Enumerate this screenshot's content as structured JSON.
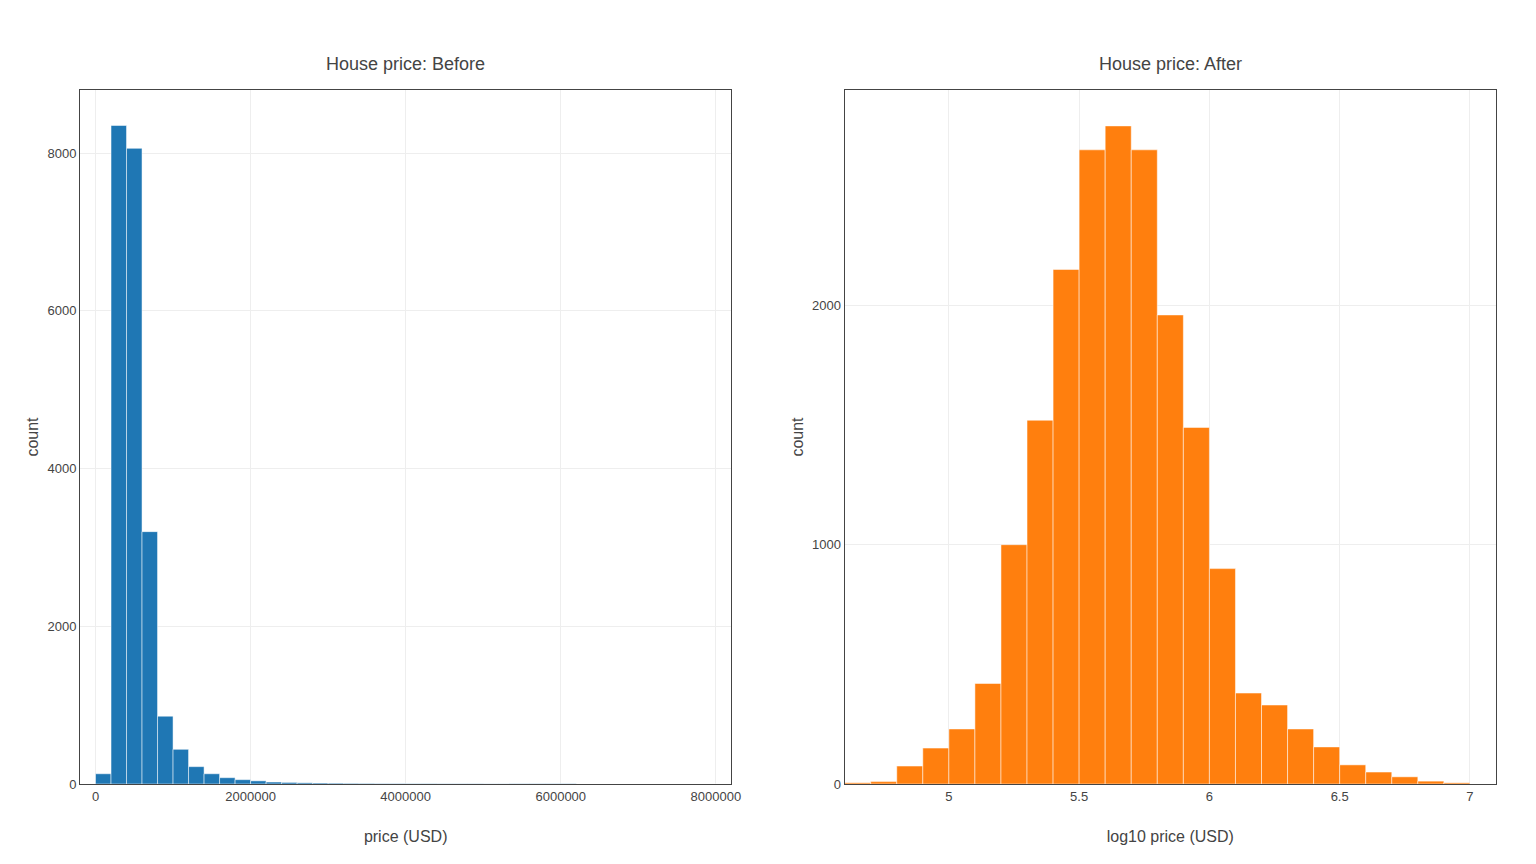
{
  "chart_data": [
    {
      "type": "histogram",
      "title": "House price: Before",
      "xlabel": "price (USD)",
      "ylabel": "count",
      "bins": [
        0,
        200000,
        400000,
        600000,
        800000,
        1000000,
        1200000,
        1400000,
        1600000,
        1800000,
        2000000,
        2200000,
        2400000,
        2600000,
        2800000,
        3000000,
        3200000,
        3400000,
        3600000,
        3800000,
        4000000,
        4200000,
        4400000,
        4600000,
        4800000,
        5000000,
        5200000,
        5400000,
        5600000,
        5800000,
        6000000,
        6200000,
        6400000,
        6600000,
        6800000,
        7000000,
        7200000,
        7400000,
        7600000,
        7800000,
        8000000
      ],
      "values": [
        130,
        8350,
        8060,
        3200,
        860,
        440,
        220,
        130,
        80,
        55,
        40,
        25,
        20,
        15,
        12,
        10,
        8,
        7,
        5,
        5,
        4,
        4,
        3,
        3,
        3,
        2,
        2,
        2,
        2,
        2,
        2,
        1,
        1,
        1,
        1,
        1,
        1,
        1,
        1,
        1
      ],
      "xlim": [
        -200000,
        8200000
      ],
      "ylim": [
        0,
        8800
      ],
      "xticks": [
        0,
        2000000,
        4000000,
        6000000,
        8000000
      ],
      "yticks": [
        0,
        2000,
        4000,
        6000,
        8000
      ],
      "grid": true
    },
    {
      "type": "histogram",
      "title": "House price: After",
      "xlabel": "log10 price (USD)",
      "ylabel": "count",
      "bins": [
        4.6,
        4.7,
        4.8,
        4.9,
        5.0,
        5.1,
        5.2,
        5.3,
        5.4,
        5.5,
        5.6,
        5.7,
        5.8,
        5.9,
        6.0,
        6.1,
        6.2,
        6.3,
        6.4,
        6.5,
        6.6,
        6.7,
        6.8,
        6.9,
        7.0
      ],
      "values": [
        5,
        10,
        75,
        150,
        230,
        420,
        1000,
        1520,
        2150,
        2650,
        2750,
        2650,
        1960,
        1490,
        900,
        380,
        330,
        230,
        155,
        80,
        50,
        30,
        12,
        5
      ],
      "xlim": [
        4.6,
        7.1
      ],
      "ylim": [
        0,
        2900
      ],
      "xticks": [
        5,
        5.5,
        6,
        6.5,
        7
      ],
      "yticks": [
        0,
        1000,
        2000
      ],
      "grid": true
    }
  ]
}
